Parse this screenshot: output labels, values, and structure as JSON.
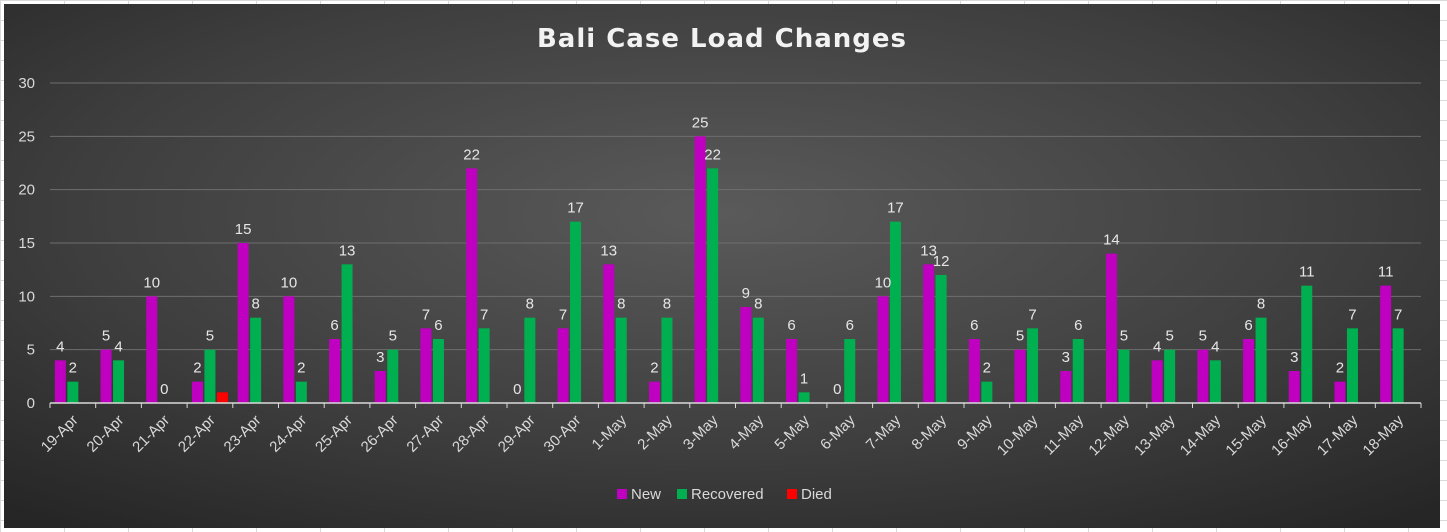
{
  "chart_data": {
    "type": "bar",
    "title": "Bali Case Load Changes",
    "xlabel": "",
    "ylabel": "",
    "ylim": [
      0,
      30
    ],
    "yticks": [
      0,
      5,
      10,
      15,
      20,
      25,
      30
    ],
    "grid": true,
    "legend_position": "bottom",
    "categories": [
      "19-Apr",
      "20-Apr",
      "21-Apr",
      "22-Apr",
      "23-Apr",
      "24-Apr",
      "25-Apr",
      "26-Apr",
      "27-Apr",
      "28-Apr",
      "29-Apr",
      "30-Apr",
      "1-May",
      "2-May",
      "3-May",
      "4-May",
      "5-May",
      "6-May",
      "7-May",
      "8-May",
      "9-May",
      "10-May",
      "11-May",
      "12-May",
      "13-May",
      "14-May",
      "15-May",
      "16-May",
      "17-May",
      "18-May"
    ],
    "series": [
      {
        "name": "New",
        "color": "#c000c0",
        "values": [
          4,
          5,
          10,
          2,
          15,
          10,
          6,
          3,
          7,
          22,
          0,
          7,
          13,
          2,
          25,
          9,
          6,
          0,
          10,
          13,
          6,
          5,
          3,
          14,
          4,
          5,
          6,
          3,
          2,
          11
        ],
        "labels": [
          "4",
          "5",
          "10",
          "2",
          "15",
          "10",
          "6",
          "3",
          "7",
          "22",
          "0",
          "7",
          "13",
          "2",
          "25",
          "9",
          "6",
          "0",
          "10",
          "13",
          "6",
          "5",
          "3",
          "14",
          "4",
          "5",
          "6",
          "3",
          "2",
          "11"
        ]
      },
      {
        "name": "Recovered",
        "color": "#00b050",
        "values": [
          2,
          4,
          0,
          5,
          8,
          2,
          13,
          5,
          6,
          7,
          8,
          17,
          8,
          8,
          22,
          8,
          1,
          6,
          17,
          12,
          2,
          7,
          6,
          5,
          5,
          4,
          8,
          11,
          7,
          7
        ],
        "labels": [
          "2",
          "4",
          "0",
          "5",
          "8",
          "2",
          "13",
          "5",
          "6",
          "7",
          "8",
          "17",
          "8",
          "8",
          "22",
          "8",
          "1",
          "6",
          "17",
          "12",
          "2",
          "7",
          "6",
          "5",
          "5",
          "4",
          "8",
          "11",
          "7",
          "7"
        ]
      },
      {
        "name": "Died",
        "color": "#ff0000",
        "values": [
          0,
          0,
          0,
          1,
          0,
          0,
          0,
          0,
          0,
          0,
          0,
          0,
          0,
          0,
          0,
          0,
          0,
          0,
          0,
          0,
          0,
          0,
          0,
          0,
          0,
          0,
          0,
          0,
          0,
          0
        ],
        "labels": [
          "",
          "",
          "",
          "",
          "",
          "",
          "",
          "",
          "",
          "",
          "",
          "",
          "",
          "",
          "",
          "",
          "",
          "",
          "",
          "",
          "",
          "",
          "",
          "",
          "",
          "",
          "",
          "",
          "",
          ""
        ]
      }
    ]
  }
}
